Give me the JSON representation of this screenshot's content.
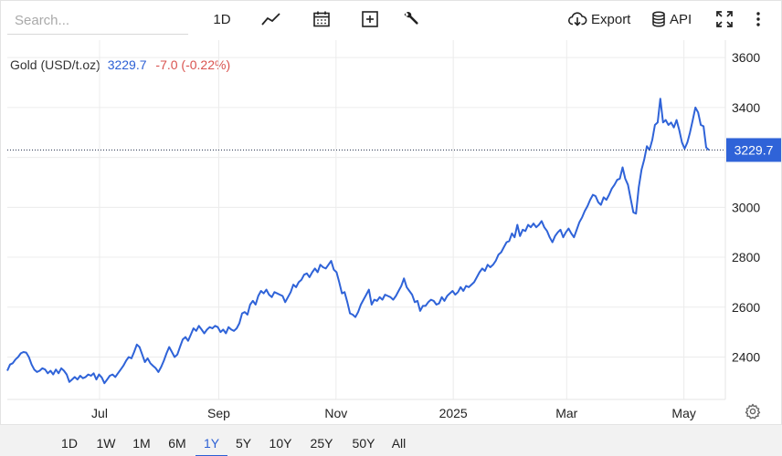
{
  "toolbar": {
    "search_placeholder": "Search...",
    "interval_label": "1D",
    "export_label": "Export",
    "api_label": "API",
    "icons": [
      "line-chart-icon",
      "calendar-icon",
      "add-square-icon",
      "wrench-icon",
      "cloud-download-icon",
      "database-icon",
      "fullscreen-icon",
      "more-vertical-icon"
    ]
  },
  "legend": {
    "symbol": "Gold (USD/t.oz)",
    "price": "3229.7",
    "change": "-7.0 (-0.22%)"
  },
  "colors": {
    "line": "#2f63d8",
    "price_tag": "#2f63d8",
    "negative": "#d9534f",
    "grid": "#ececec"
  },
  "chart_data": {
    "type": "line",
    "series": [
      {
        "values": [
          2345,
          2370,
          2375,
          2390,
          2400,
          2415,
          2420,
          2418,
          2400,
          2370,
          2350,
          2340,
          2345,
          2355,
          2350,
          2335,
          2345,
          2330,
          2350,
          2335,
          2355,
          2345,
          2330,
          2300,
          2310,
          2320,
          2310,
          2325,
          2315,
          2320,
          2330,
          2325,
          2335,
          2310,
          2330,
          2318,
          2295,
          2310,
          2325,
          2330,
          2320,
          2335,
          2350,
          2365,
          2385,
          2400,
          2395,
          2420,
          2450,
          2440,
          2410,
          2380,
          2395,
          2375,
          2365,
          2355,
          2340,
          2360,
          2385,
          2415,
          2440,
          2420,
          2400,
          2410,
          2440,
          2470,
          2480,
          2465,
          2490,
          2515,
          2505,
          2525,
          2510,
          2495,
          2510,
          2520,
          2515,
          2525,
          2520,
          2500,
          2510,
          2495,
          2520,
          2510,
          2505,
          2515,
          2535,
          2575,
          2580,
          2570,
          2610,
          2625,
          2610,
          2645,
          2665,
          2655,
          2670,
          2650,
          2640,
          2660,
          2655,
          2650,
          2645,
          2620,
          2640,
          2660,
          2690,
          2680,
          2700,
          2710,
          2730,
          2735,
          2720,
          2740,
          2755,
          2740,
          2770,
          2760,
          2755,
          2770,
          2785,
          2750,
          2740,
          2700,
          2655,
          2660,
          2620,
          2575,
          2570,
          2560,
          2580,
          2610,
          2630,
          2650,
          2670,
          2610,
          2630,
          2625,
          2640,
          2630,
          2650,
          2645,
          2640,
          2630,
          2645,
          2665,
          2685,
          2715,
          2680,
          2665,
          2650,
          2620,
          2625,
          2585,
          2605,
          2605,
          2620,
          2630,
          2625,
          2610,
          2615,
          2640,
          2625,
          2645,
          2655,
          2665,
          2650,
          2660,
          2680,
          2665,
          2685,
          2680,
          2690,
          2700,
          2720,
          2740,
          2755,
          2745,
          2770,
          2760,
          2770,
          2785,
          2810,
          2820,
          2840,
          2860,
          2865,
          2895,
          2880,
          2930,
          2885,
          2910,
          2905,
          2930,
          2920,
          2935,
          2920,
          2930,
          2945,
          2920,
          2905,
          2880,
          2860,
          2885,
          2900,
          2910,
          2880,
          2900,
          2915,
          2895,
          2880,
          2910,
          2940,
          2960,
          2985,
          3005,
          3030,
          3050,
          3045,
          3020,
          3010,
          3040,
          3030,
          3050,
          3075,
          3090,
          3110,
          3115,
          3160,
          3115,
          3090,
          3035,
          2980,
          2975,
          3080,
          3150,
          3190,
          3245,
          3230,
          3270,
          3330,
          3340,
          3435,
          3340,
          3350,
          3330,
          3340,
          3320,
          3350,
          3310,
          3260,
          3235,
          3260,
          3300,
          3350,
          3400,
          3380,
          3330,
          3325,
          3240,
          3229.7
        ]
      }
    ],
    "x_range": [
      "2024-05-14",
      "2025-05-14"
    ],
    "x_ticks": [
      {
        "label": "Jul",
        "date": "2024-07-01"
      },
      {
        "label": "Sep",
        "date": "2024-09-01"
      },
      {
        "label": "Nov",
        "date": "2024-11-01"
      },
      {
        "label": "2025",
        "date": "2025-01-01"
      },
      {
        "label": "Mar",
        "date": "2025-03-01"
      },
      {
        "label": "May",
        "date": "2025-05-01"
      }
    ],
    "y_ticks": [
      2400,
      2600,
      2800,
      3000,
      3200,
      3400,
      3600
    ],
    "y_tick_labels": [
      "2400",
      "2600",
      "2800",
      "3000",
      "3400",
      "3600"
    ],
    "ylim": [
      2230,
      3670
    ],
    "last_value": 3229.7,
    "last_value_label": "3229.7",
    "grid": true
  },
  "ranges": {
    "items": [
      "1D",
      "1W",
      "1M",
      "6M",
      "1Y",
      "5Y",
      "10Y",
      "25Y",
      "50Y",
      "All"
    ],
    "active": "1Y"
  }
}
